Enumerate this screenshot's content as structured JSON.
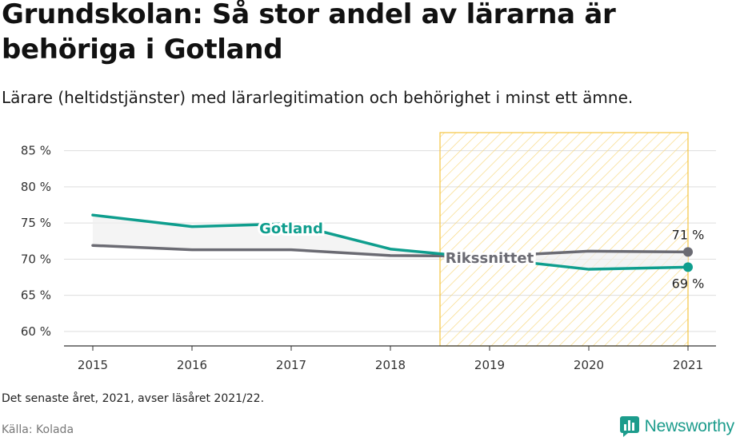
{
  "title": "Grundskolan: Så stor andel av lärarna är behöriga i Gotland",
  "subtitle": "Lärare (heltidstjänster) med lärarlegitimation och behörighet i minst ett ämne.",
  "note": "Det senaste året, 2021, avser läsåret 2021/22.",
  "source": "Källa: Kolada",
  "brand": {
    "name": "Newsworthy",
    "icon": "newsworthy-logo-icon"
  },
  "colors": {
    "gotland": "#0f9e8e",
    "riket": "#6b6b73",
    "highlight_stroke": "#f5c542",
    "grid": "#dddddd",
    "brand": "#1c9c8c"
  },
  "chart_data": {
    "type": "line",
    "x": [
      2015,
      2016,
      2017,
      2018,
      2019,
      2020,
      2021
    ],
    "ylim": [
      58,
      87.5
    ],
    "yticks": [
      60,
      65,
      70,
      75,
      80,
      85
    ],
    "ytick_labels": [
      "60 %",
      "65 %",
      "70 %",
      "75 %",
      "80 %",
      "85 %"
    ],
    "xtick_labels": [
      "2015",
      "2016",
      "2017",
      "2018",
      "2019",
      "2020",
      "2021"
    ],
    "highlight_range": [
      2018.5,
      2021
    ],
    "grid": true,
    "series": [
      {
        "name": "Gotland",
        "key": "gotland",
        "values": [
          76.1,
          74.5,
          74.9,
          71.4,
          70.1,
          68.6,
          68.9
        ],
        "label_at": 2017,
        "end_label": "69 %"
      },
      {
        "name": "Rikssnittet",
        "key": "riket",
        "values": [
          71.9,
          71.3,
          71.3,
          70.5,
          70.4,
          71.1,
          71.0
        ],
        "label_at": 2019,
        "end_label": "71 %"
      }
    ]
  }
}
